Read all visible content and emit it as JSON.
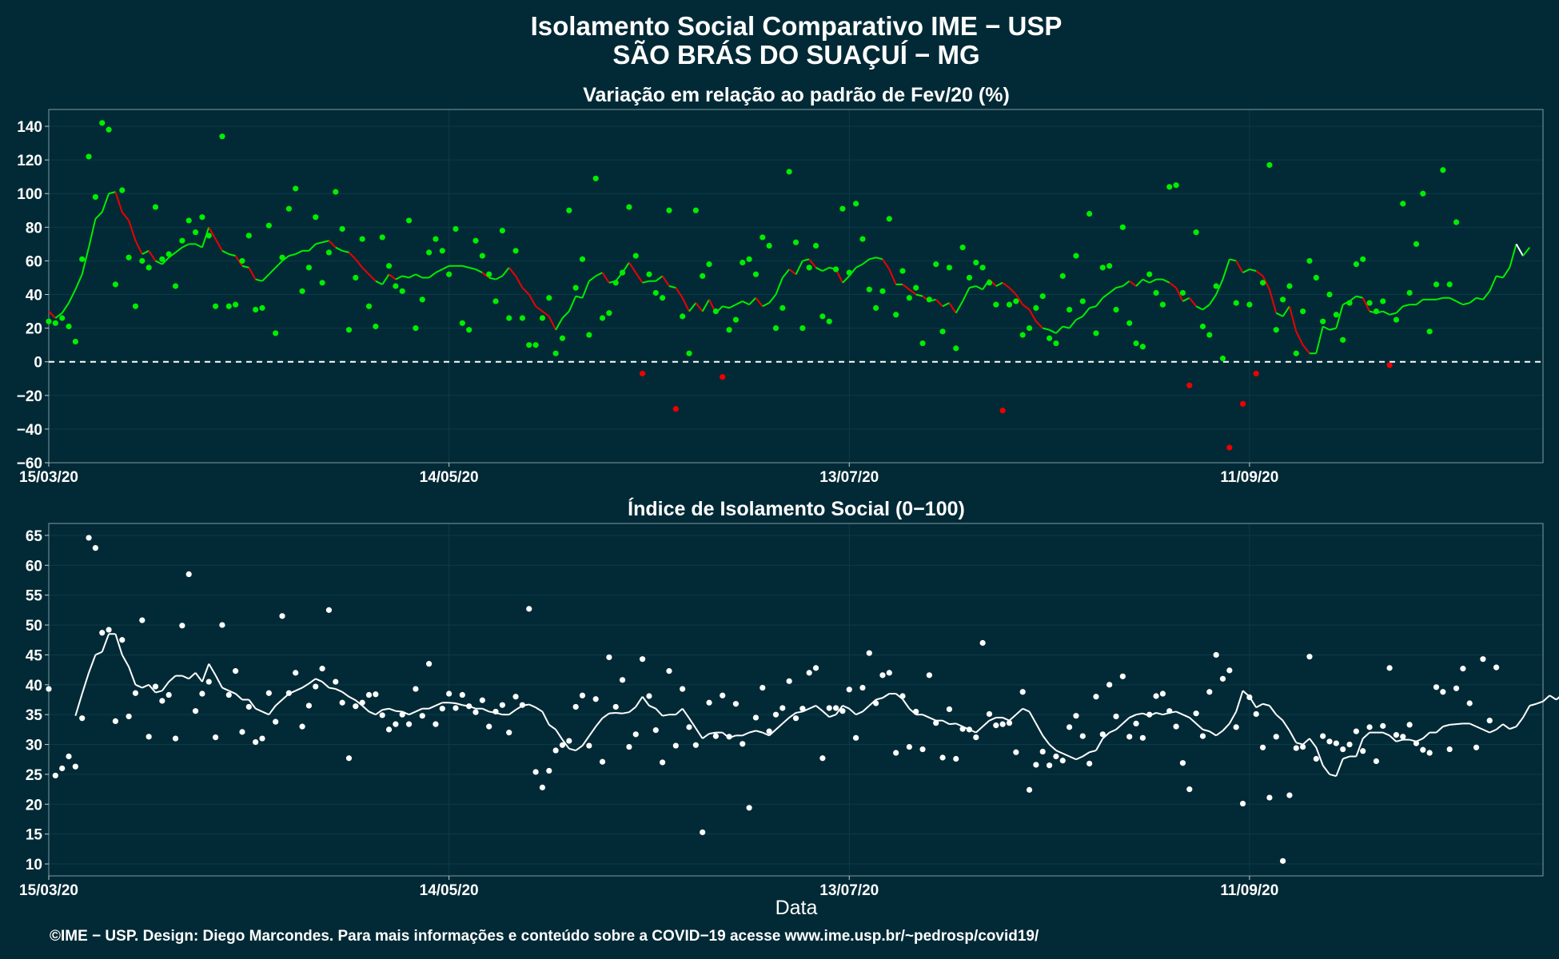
{
  "header": {
    "title": "Isolamento Social Comparativo IME − USP",
    "subtitle": "SÃO BRÁS DO SUAÇUÍ − MG"
  },
  "footer": {
    "xlabel": "Data",
    "credit": "©IME − USP. Design: Diego Marcondes. Para mais informações e conteúdo sobre a COVID−19 acesse www.ime.usp.br/~pedrosp/covid19/"
  },
  "colors": {
    "background": "#022a36",
    "positive": "#00ee00",
    "negative": "#ee0000",
    "index": "#ffffff",
    "zero_line": "#ffffff"
  },
  "chart_data": [
    {
      "type": "scatter",
      "title": "Variação em relação ao padrão de Fev/20 (%)",
      "x_axis": "date",
      "x_range": [
        "2020-03-15",
        "2020-10-25"
      ],
      "x_ticks": [
        "15/03/20",
        "14/05/20",
        "13/07/20",
        "11/09/20"
      ],
      "ylim": [
        -60,
        150
      ],
      "y_ticks": [
        -60,
        -40,
        -20,
        0,
        20,
        40,
        60,
        80,
        100,
        120,
        140
      ],
      "reference_line": 0,
      "grid": true,
      "points_start_date": "2020-03-15",
      "series": [
        {
          "values": [
            24,
            23,
            26,
            21,
            12,
            61,
            122,
            98,
            142,
            138,
            46,
            102,
            62,
            33,
            60,
            56,
            92,
            61,
            64,
            45,
            72,
            84,
            77,
            86,
            75,
            33,
            134,
            33,
            34,
            60,
            75,
            31,
            32,
            81,
            17,
            62,
            91,
            103,
            42,
            56,
            86,
            47,
            65,
            101,
            79,
            19,
            50,
            73,
            33,
            21,
            74,
            57,
            45,
            42,
            84,
            20,
            37,
            65,
            73,
            66,
            52,
            79,
            23,
            19,
            72,
            63,
            52,
            36,
            78,
            26,
            66,
            26,
            10,
            10,
            26,
            38,
            5,
            14,
            90,
            44,
            61,
            16,
            109,
            26,
            29,
            47,
            53,
            92,
            63,
            -7,
            52,
            41,
            38,
            90,
            -28,
            27,
            5,
            90,
            51,
            58,
            30,
            -9,
            19,
            25,
            59,
            61,
            52,
            74,
            69,
            20,
            32,
            113,
            71,
            20,
            56,
            69,
            27,
            24,
            55,
            91,
            53,
            94,
            73,
            43,
            32,
            42,
            85,
            28,
            54,
            38,
            44,
            11,
            37,
            58,
            18,
            56,
            8,
            68,
            50,
            59,
            56,
            47,
            34,
            -29,
            34,
            36,
            16,
            20,
            32,
            39,
            14,
            11,
            51,
            31,
            63,
            36,
            88,
            17,
            56,
            57,
            31,
            80,
            23,
            11,
            9,
            52,
            41,
            34,
            104,
            105,
            41,
            -14,
            77,
            21,
            16,
            45,
            2,
            -51,
            35,
            -25,
            34,
            -7,
            47,
            117,
            19,
            37,
            45,
            5,
            30,
            60,
            50,
            24,
            40,
            28,
            13,
            35,
            58,
            61,
            35,
            30,
            36,
            -2,
            25,
            94,
            41,
            70,
            100,
            18,
            46,
            114,
            46,
            83
          ],
          "smoothed": [
            30,
            26,
            29,
            35,
            43,
            52,
            68,
            85,
            89,
            100,
            101,
            89,
            84,
            72,
            64,
            66,
            60,
            58,
            62,
            65,
            68,
            70,
            70,
            68,
            80,
            73,
            66,
            64,
            63,
            57,
            56,
            49,
            48,
            52,
            56,
            60,
            63,
            64,
            66,
            66,
            70,
            71,
            72,
            68,
            66,
            65,
            61,
            56,
            52,
            48,
            46,
            52,
            49,
            51,
            50,
            52,
            50,
            50,
            53,
            55,
            57,
            57,
            57,
            56,
            55,
            53,
            50,
            49,
            51,
            56,
            51,
            44,
            40,
            33,
            30,
            27,
            19,
            26,
            30,
            39,
            38,
            48,
            51,
            53,
            47,
            48,
            53,
            59,
            53,
            47,
            48,
            48,
            51,
            45,
            44,
            38,
            30,
            35,
            30,
            37,
            29,
            33,
            32,
            34,
            36,
            34,
            38,
            33,
            35,
            40,
            50,
            55,
            52,
            60,
            61,
            56,
            54,
            56,
            55,
            47,
            51,
            56,
            58,
            61,
            62,
            61,
            55,
            46,
            46,
            43,
            40,
            39,
            36,
            37,
            33,
            35,
            29,
            36,
            44,
            45,
            43,
            49,
            45,
            47,
            44,
            40,
            34,
            31,
            24,
            20,
            19,
            17,
            21,
            20,
            25,
            27,
            32,
            33,
            38,
            41,
            44,
            45,
            48,
            45,
            49,
            47,
            49,
            49,
            47,
            44,
            36,
            38,
            33,
            31,
            34,
            40,
            49,
            61,
            60,
            53,
            55,
            54,
            51,
            43,
            29,
            27,
            33,
            18,
            10,
            5,
            5,
            21,
            19,
            20,
            34,
            36,
            39,
            38,
            30,
            29,
            30,
            28,
            29,
            33,
            34,
            34,
            37,
            37,
            37,
            38,
            38,
            36,
            34,
            35,
            38,
            37,
            42,
            51,
            50,
            56,
            70,
            63,
            68
          ]
        }
      ]
    },
    {
      "type": "scatter",
      "title": "Índice de Isolamento Social (0−100)",
      "x_axis": "date",
      "x_range": [
        "2020-03-15",
        "2020-10-25"
      ],
      "x_ticks": [
        "15/03/20",
        "14/05/20",
        "13/07/20",
        "11/09/20"
      ],
      "ylim": [
        8,
        67
      ],
      "y_ticks": [
        10,
        15,
        20,
        25,
        30,
        35,
        40,
        45,
        50,
        55,
        60,
        65
      ],
      "grid": true,
      "points_start_date": "2020-03-15",
      "series": [
        {
          "values": [
            39.3,
            24.8,
            26,
            28,
            26.3,
            34.4,
            64.6,
            62.9,
            48.7,
            49.2,
            33.9,
            47.5,
            34.7,
            38.6,
            50.8,
            31.3,
            39.7,
            37.3,
            38.3,
            31,
            49.9,
            58.5,
            35.6,
            38.5,
            40.5,
            31.2,
            50,
            38.3,
            42.3,
            32.1,
            36.3,
            30.4,
            31,
            38.6,
            33.8,
            51.5,
            38.6,
            42,
            33,
            36.5,
            39.7,
            42.7,
            52.5,
            40.5,
            37,
            27.7,
            36.4,
            37,
            38.3,
            38.4,
            34.9,
            32.5,
            33.4,
            35,
            33.4,
            39.3,
            34.8,
            43.5,
            33.4,
            36,
            38.5,
            36.1,
            38.3,
            36.4,
            35.4,
            37.4,
            33,
            35.5,
            36.6,
            32,
            38,
            36.6,
            52.7,
            25.4,
            22.8,
            25.6,
            29,
            29.9,
            30.6,
            36.3,
            38.2,
            29.8,
            37.6,
            27.1,
            44.6,
            36.3,
            40.8,
            29.6,
            31.7,
            44.3,
            38.1,
            32.4,
            27,
            42.3,
            29.8,
            39.3,
            32.9,
            29.9,
            15.3,
            37,
            31.4,
            38.2,
            31.3,
            36.8,
            30.1,
            19.4,
            34.5,
            39.5,
            32.2,
            35,
            36.1,
            40.6,
            34.4,
            36,
            42,
            42.8,
            27.7,
            36.1,
            36.1,
            35.6,
            39.2,
            31.1,
            39.5,
            45.3,
            36.9,
            41.6,
            42,
            28.6,
            38.1,
            29.6,
            35.5,
            29.2,
            41.6,
            33.6,
            27.8,
            35.9,
            27.6,
            32.6,
            32.5,
            31.2,
            47,
            35.1,
            33.2,
            33.4,
            33.6,
            28.7,
            38.8,
            22.4,
            26.6,
            28.8,
            26.5,
            28,
            27.3,
            32.9,
            34.8,
            31.4,
            26.8,
            38,
            31.7,
            40,
            34.7,
            41.4,
            31.3,
            33.5,
            31.1,
            35,
            38.1,
            38.5,
            35.6,
            33,
            26.9,
            22.5,
            35.2,
            31.4,
            38.8,
            45,
            41,
            42.4,
            32.9,
            20.1,
            37.9,
            35.1,
            29.5,
            21.1,
            31.3,
            10.5,
            21.5,
            29.4,
            29.6,
            44.7,
            27.6,
            31.4,
            30.5,
            30.2,
            29.2,
            30,
            32.2,
            28.9,
            32.9,
            27.2,
            33.1,
            42.8,
            31.6,
            31.3,
            33.3,
            30.2,
            29.1,
            28.6,
            39.6,
            38.8,
            29.2,
            39.4,
            42.7,
            36.9,
            29.5,
            44.3,
            34,
            42.9
          ],
          "smoothed": [
            null,
            null,
            null,
            null,
            null,
            null,
            null,
            null,
            null,
            null,
            null,
            null,
            null,
            null,
            null,
            null,
            null,
            null,
            null,
            null,
            null,
            null,
            null,
            null,
            null,
            null,
            null,
            null,
            null,
            null,
            null,
            null,
            null,
            null,
            null,
            null,
            null,
            null,
            null,
            null,
            null,
            null,
            null,
            null,
            null,
            null,
            null,
            null,
            null,
            null,
            null,
            null,
            null,
            null,
            null,
            null,
            null,
            null,
            null,
            null,
            null,
            null,
            null,
            null,
            null,
            null,
            null,
            null,
            null,
            null,
            null,
            null,
            null,
            null,
            null,
            null,
            null,
            null,
            null,
            null,
            null,
            null,
            null,
            null,
            null,
            null,
            null,
            null,
            null,
            null,
            null,
            null,
            null,
            null,
            null,
            null,
            null,
            null,
            null,
            null,
            null,
            null,
            null,
            null,
            null,
            null,
            null,
            null,
            null,
            null,
            null,
            null,
            null,
            null,
            null,
            null,
            null,
            null,
            null,
            null,
            null,
            null,
            null,
            null,
            null,
            null,
            null,
            null,
            null,
            null,
            null,
            null,
            null,
            null,
            null,
            null,
            null,
            null,
            null,
            null,
            null,
            null,
            null,
            null,
            null,
            null,
            null,
            null,
            null,
            null,
            null,
            null,
            null,
            null,
            null,
            null,
            null,
            null,
            null,
            null,
            null,
            null,
            null,
            null,
            null,
            null,
            null,
            null,
            null,
            null,
            null,
            null,
            null,
            null,
            null,
            null,
            null,
            null,
            null,
            null,
            null,
            null,
            null,
            null,
            null,
            null,
            null,
            null,
            null,
            null,
            null,
            null,
            null,
            null,
            null,
            null,
            null,
            null,
            null,
            null,
            null,
            null,
            null,
            null,
            null,
            null,
            null,
            null,
            null,
            null,
            null,
            null,
            null,
            null,
            null,
            null,
            null,
            null,
            null,
            null,
            null,
            null,
            null,
            null,
            null,
            null,
            null,
            null,
            null,
            null,
            null
          ]
        }
      ],
      "smoothed_line": [
        34.8,
        38.5,
        42,
        45,
        45.5,
        48.5,
        48.5,
        45,
        43,
        40,
        39.5,
        40,
        38.7,
        39,
        40.5,
        41.5,
        41.5,
        41,
        42,
        40.5,
        43.5,
        41.6,
        39.5,
        39,
        38.5,
        37.5,
        37.5,
        36,
        35.5,
        35,
        36.5,
        37.5,
        38.5,
        39,
        39.5,
        40.2,
        41,
        40.5,
        39.5,
        39.3,
        38.8,
        38,
        37.4,
        36.5,
        35.5,
        35,
        35.8,
        36,
        35.6,
        35.5,
        35,
        35.5,
        36,
        36,
        36.5,
        37,
        37,
        36.9,
        36.6,
        36.4,
        36,
        36,
        35.5,
        35.3,
        35,
        35,
        35.8,
        36.5,
        36.7,
        36.2,
        35.5,
        33.3,
        32.5,
        30.8,
        29.3,
        29,
        29.8,
        31.4,
        33,
        34.4,
        35.2,
        35.3,
        35.2,
        35.4,
        36.3,
        38,
        36.5,
        36,
        34.8,
        35,
        35,
        36,
        34.4,
        32.7,
        31,
        31.8,
        32,
        32,
        31.1,
        31.5,
        31.5,
        32,
        32.3,
        32,
        31.5,
        32.5,
        33.5,
        34.5,
        35.3,
        35.5,
        36,
        36.5,
        35.6,
        34.6,
        35,
        36.5,
        36,
        35,
        35.5,
        36.5,
        37.5,
        37.8,
        38.5,
        38.5,
        37.6,
        36,
        35,
        35,
        34.5,
        34,
        34,
        33.4,
        33.5,
        33,
        32.5,
        32,
        33,
        34,
        34.5,
        34.5,
        34,
        35,
        36,
        35.5,
        33.5,
        31.5,
        30,
        29,
        28.5,
        28,
        27.5,
        28,
        28.7,
        29,
        31,
        32,
        32.5,
        33.5,
        34.5,
        35,
        35.2,
        34.8,
        35.3,
        35,
        35.3,
        35.5,
        35,
        34.5,
        33.5,
        32.5,
        32.2,
        31.5,
        32.3,
        33.5,
        35.5,
        39,
        38,
        36.2,
        36.8,
        36.5,
        35,
        34,
        32.3,
        30.3,
        30,
        31,
        29.5,
        26.5,
        25,
        24.7,
        27.6,
        28,
        28,
        31,
        32,
        32,
        32,
        31.5,
        30.5,
        30.8,
        30.8,
        30.5,
        31,
        32,
        32,
        33,
        33.3,
        33.4,
        33.5,
        33.5,
        33,
        32.5,
        32,
        32.5,
        33.4,
        32.6,
        33,
        34.5,
        36.5,
        36.8,
        37.2,
        38.2,
        37.5,
        38.5,
        36,
        33.5,
        31.7
      ]
    }
  ]
}
